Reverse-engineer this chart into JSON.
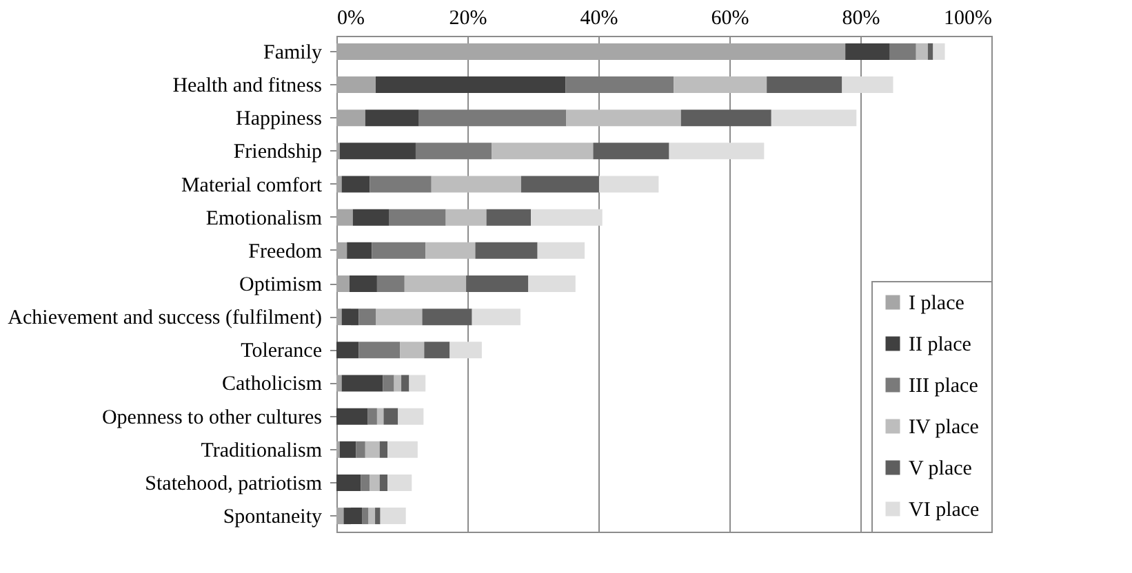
{
  "chart_data": {
    "type": "bar",
    "orientation": "horizontal",
    "stacked": true,
    "categories": [
      "Family",
      "Health and fitness",
      "Happiness",
      "Friendship",
      "Material comfort",
      "Emotionalism",
      "Freedom",
      "Optimism",
      "Achievement and success (fulfilment)",
      "Tolerance",
      "Catholicism",
      "Openness to other cultures",
      "Traditionalism",
      "Statehood, patriotism",
      "Spontaneity"
    ],
    "series": [
      {
        "name": "I place",
        "color": "#a6a6a6",
        "values": [
          77.7,
          6.0,
          4.4,
          0.5,
          0.8,
          2.5,
          1.6,
          2.0,
          0.8,
          0,
          0.8,
          0,
          0.5,
          0,
          1.1
        ]
      },
      {
        "name": "II place",
        "color": "#404040",
        "values": [
          6.8,
          29.0,
          8.2,
          11.6,
          4.3,
          5.5,
          3.8,
          4.2,
          2.6,
          3.4,
          6.3,
          4.8,
          2.5,
          3.7,
          2.8
        ]
      },
      {
        "name": "III place",
        "color": "#7a7a7a",
        "values": [
          4.0,
          16.5,
          22.5,
          11.6,
          9.4,
          8.7,
          8.2,
          4.2,
          2.6,
          6.3,
          1.7,
          1.4,
          1.4,
          1.4,
          1.0
        ]
      },
      {
        "name": "IV place",
        "color": "#bdbdbd",
        "values": [
          1.8,
          14.2,
          17.5,
          15.5,
          13.7,
          6.2,
          7.6,
          9.4,
          7.1,
          3.7,
          1.1,
          1.0,
          2.2,
          1.5,
          1.0
        ]
      },
      {
        "name": "V place",
        "color": "#5e5e5e",
        "values": [
          0.8,
          11.5,
          13.8,
          11.6,
          11.9,
          6.8,
          9.5,
          9.5,
          7.6,
          3.9,
          1.2,
          2.2,
          1.2,
          1.2,
          0.8
        ]
      },
      {
        "name": "VI place",
        "color": "#dedede",
        "values": [
          1.8,
          7.8,
          13.0,
          14.5,
          9.1,
          10.9,
          7.2,
          7.2,
          7.4,
          4.9,
          2.5,
          3.9,
          4.6,
          3.7,
          3.9
        ]
      }
    ],
    "xlim": [
      0,
      100
    ],
    "xticks": [
      {
        "value": 0,
        "label": "0%"
      },
      {
        "value": 20,
        "label": "20%"
      },
      {
        "value": 40,
        "label": "40%"
      },
      {
        "value": 60,
        "label": "60%"
      },
      {
        "value": 80,
        "label": "80%"
      },
      {
        "value": 100,
        "label": "100%"
      }
    ],
    "grid": "x",
    "legend": "bottom right"
  }
}
